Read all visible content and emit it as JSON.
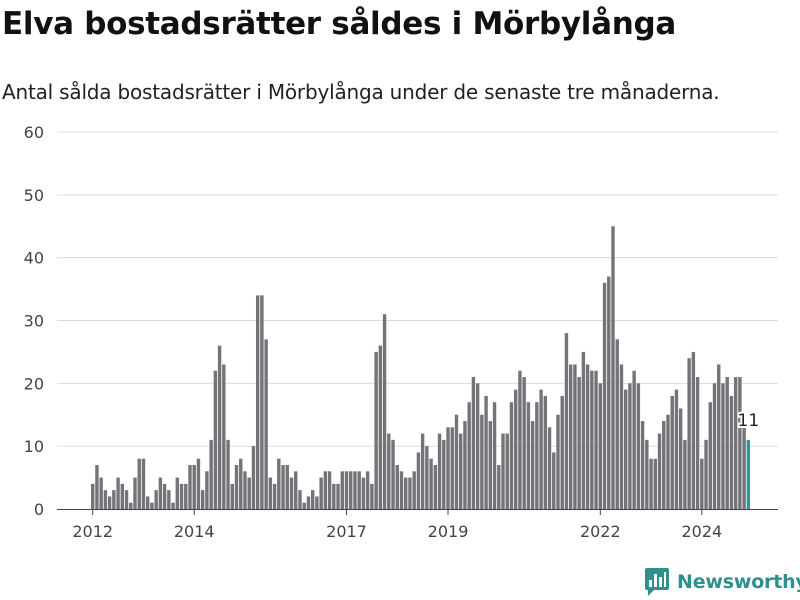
{
  "title": "Elva bostadsrätter såldes i Mörbylånga",
  "subtitle": "Antal sålda bostadsrätter i Mörbylånga under de senaste tre månaderna.",
  "brand": {
    "name": "Newsworthy",
    "icon": "newsworthy-logo-icon"
  },
  "colors": {
    "bar": "#747378",
    "highlight": "#2a9a93",
    "grid": "#dcdcdc",
    "axis": "#444444",
    "brand": "#2e8f8c"
  },
  "chart_data": {
    "type": "bar",
    "title": "",
    "xlabel": "",
    "ylabel": "",
    "ylim": [
      0,
      60
    ],
    "yticks": [
      0,
      10,
      20,
      30,
      40,
      50,
      60
    ],
    "grid": true,
    "legend": "none",
    "x_start": "2012-01",
    "x_end": "2024-12",
    "x_ticks": [
      {
        "label": "2012",
        "date": "2012-01"
      },
      {
        "label": "2014",
        "date": "2014-01"
      },
      {
        "label": "2017",
        "date": "2017-01"
      },
      {
        "label": "2019",
        "date": "2019-01"
      },
      {
        "label": "2022",
        "date": "2022-01"
      },
      {
        "label": "2024",
        "date": "2024-01"
      }
    ],
    "highlight_last": true,
    "data_label": "11",
    "values": [
      4,
      7,
      5,
      3,
      2,
      3,
      5,
      4,
      3,
      1,
      5,
      8,
      8,
      2,
      1,
      3,
      5,
      4,
      3,
      1,
      5,
      4,
      4,
      7,
      7,
      8,
      3,
      6,
      11,
      22,
      26,
      23,
      11,
      4,
      7,
      8,
      6,
      5,
      10,
      34,
      34,
      27,
      5,
      4,
      8,
      7,
      7,
      5,
      6,
      3,
      1,
      2,
      3,
      2,
      5,
      6,
      6,
      4,
      4,
      6,
      6,
      6,
      6,
      6,
      5,
      6,
      4,
      25,
      26,
      31,
      12,
      11,
      7,
      6,
      5,
      5,
      6,
      9,
      12,
      10,
      8,
      7,
      12,
      11,
      13,
      13,
      15,
      12,
      14,
      17,
      21,
      20,
      15,
      18,
      14,
      17,
      7,
      12,
      12,
      17,
      19,
      22,
      21,
      17,
      14,
      17,
      19,
      18,
      13,
      9,
      15,
      18,
      28,
      23,
      23,
      21,
      25,
      23,
      22,
      22,
      20,
      36,
      37,
      45,
      27,
      23,
      19,
      20,
      22,
      20,
      14,
      11,
      8,
      8,
      12,
      14,
      15,
      18,
      19,
      16,
      11,
      24,
      25,
      21,
      8,
      11,
      17,
      20,
      23,
      20,
      21,
      18,
      21,
      21,
      13,
      11
    ]
  }
}
